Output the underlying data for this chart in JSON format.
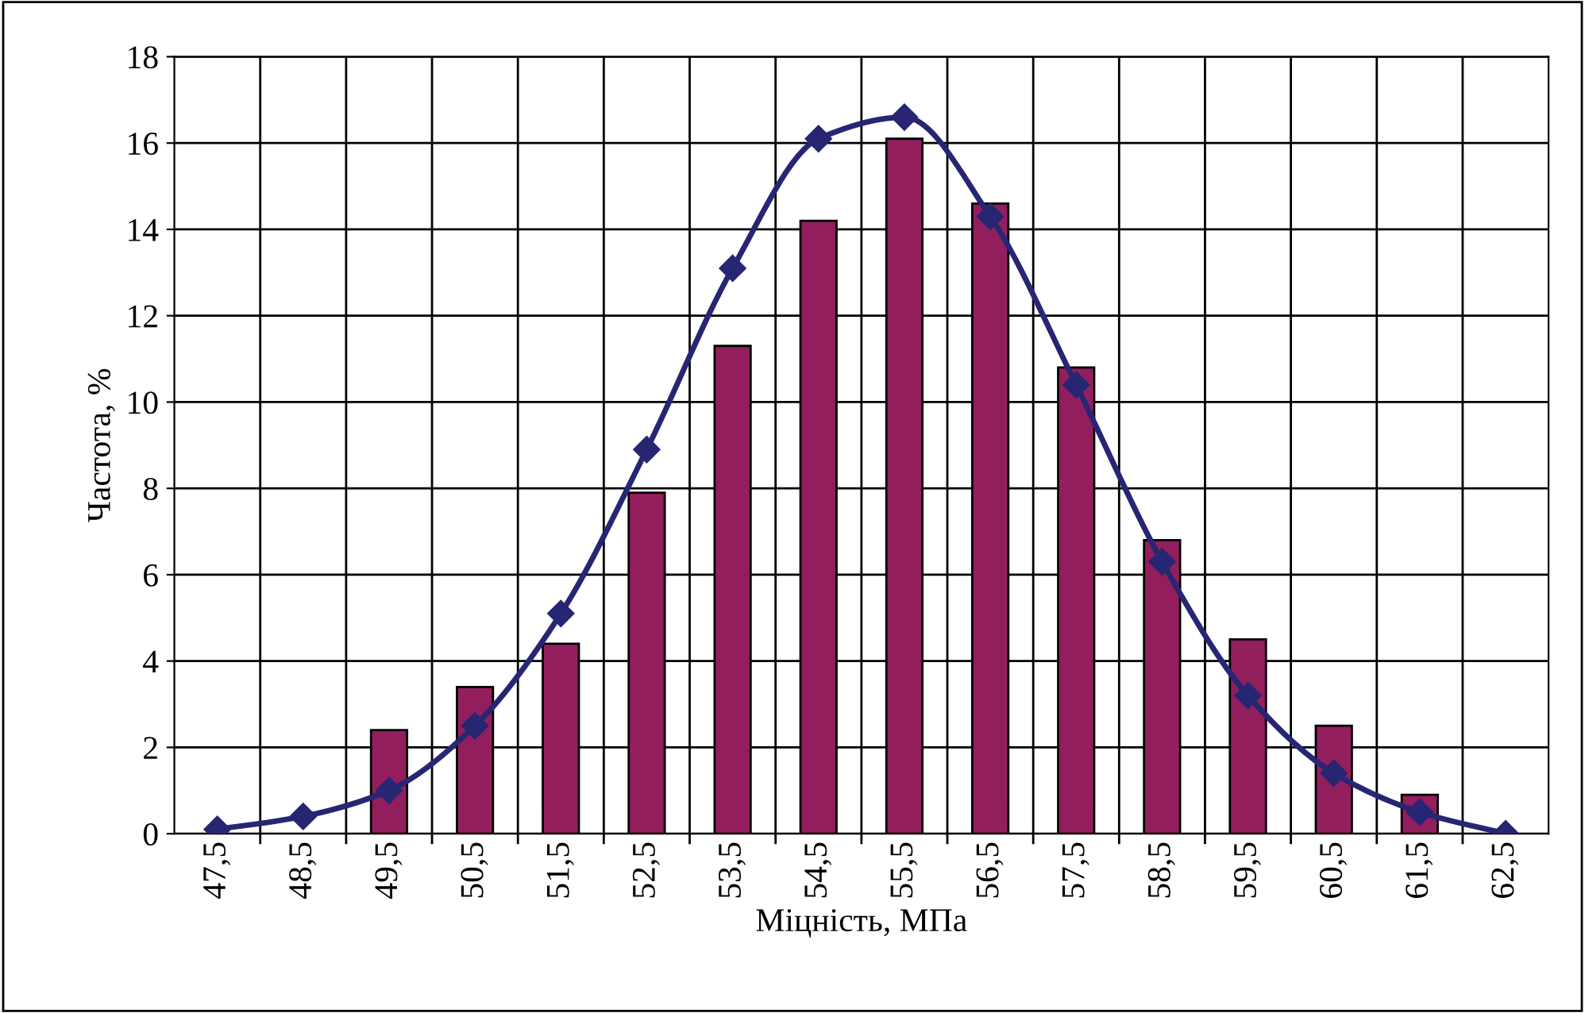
{
  "chart_data": {
    "type": "bar",
    "xlabel": "Міцність, МПа",
    "ylabel": "Частота, %",
    "categories": [
      "47,5",
      "48,5",
      "49,5",
      "50,5",
      "51,5",
      "52,5",
      "53,5",
      "54,5",
      "55,5",
      "56,5",
      "57,5",
      "58,5",
      "59,5",
      "60,5",
      "61,5",
      "62,5"
    ],
    "series": [
      {
        "color": "#931e5e",
        "values": [
          null,
          null,
          2.4,
          3.4,
          4.4,
          7.9,
          11.3,
          14.2,
          16.1,
          14.6,
          10.8,
          6.8,
          4.5,
          2.5,
          0.9,
          null
        ]
      },
      {
        "type": "line",
        "color": "#262673",
        "marker": "diamond",
        "line_style": "solid",
        "values": [
          0.1,
          0.4,
          1.0,
          2.5,
          5.1,
          8.9,
          13.1,
          16.1,
          16.6,
          14.3,
          10.4,
          6.3,
          3.2,
          1.4,
          0.5,
          0.0
        ]
      }
    ],
    "ylim": [
      0,
      18
    ],
    "yticks": [
      0,
      2,
      4,
      6,
      8,
      10,
      12,
      14,
      16,
      18
    ],
    "grid": true,
    "legend": false
  }
}
